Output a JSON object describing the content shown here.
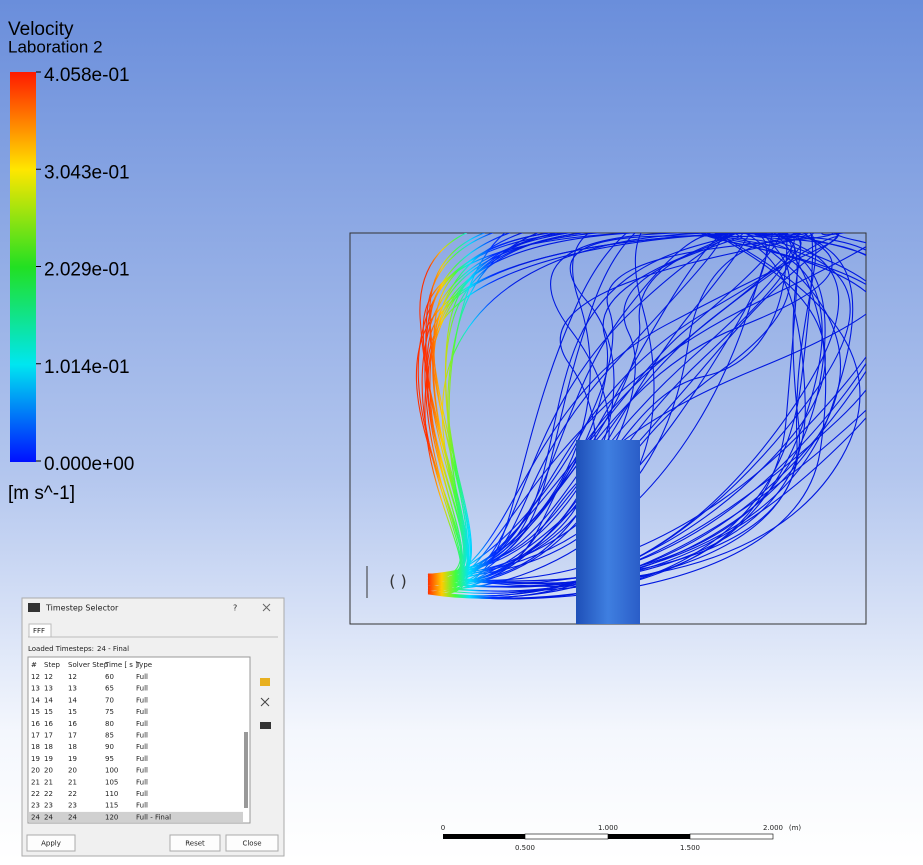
{
  "legend": {
    "title": "Velocity",
    "subtitle": "Laboration 2",
    "ticks": [
      "4.058e-01",
      "3.043e-01",
      "2.029e-01",
      "1.014e-01",
      "0.000e+00"
    ],
    "unit": "[m s^-1]"
  },
  "dialog": {
    "title": "Timestep Selector",
    "help": "?",
    "tab": "FFF",
    "loaded_label": "Loaded Timesteps:",
    "loaded_value": "24 - Final",
    "columns": [
      "#",
      "Step",
      "Solver Step",
      "Time [ s ]",
      "Type"
    ],
    "rows": [
      [
        "12",
        "12",
        "12",
        "60",
        "Full"
      ],
      [
        "13",
        "13",
        "13",
        "65",
        "Full"
      ],
      [
        "14",
        "14",
        "14",
        "70",
        "Full"
      ],
      [
        "15",
        "15",
        "15",
        "75",
        "Full"
      ],
      [
        "16",
        "16",
        "16",
        "80",
        "Full"
      ],
      [
        "17",
        "17",
        "17",
        "85",
        "Full"
      ],
      [
        "18",
        "18",
        "18",
        "90",
        "Full"
      ],
      [
        "19",
        "19",
        "19",
        "95",
        "Full"
      ],
      [
        "20",
        "20",
        "20",
        "100",
        "Full"
      ],
      [
        "21",
        "21",
        "21",
        "105",
        "Full"
      ],
      [
        "22",
        "22",
        "22",
        "110",
        "Full"
      ],
      [
        "23",
        "23",
        "23",
        "115",
        "Full"
      ],
      [
        "24",
        "24",
        "24",
        "120",
        "Full - Final"
      ]
    ],
    "buttons": [
      "Apply",
      "Reset",
      "Close"
    ]
  },
  "scale_bar": {
    "top_labels": [
      "0",
      "1.000",
      "2.000",
      "(m)"
    ],
    "bottom_labels": [
      "0.500",
      "1.500"
    ]
  }
}
